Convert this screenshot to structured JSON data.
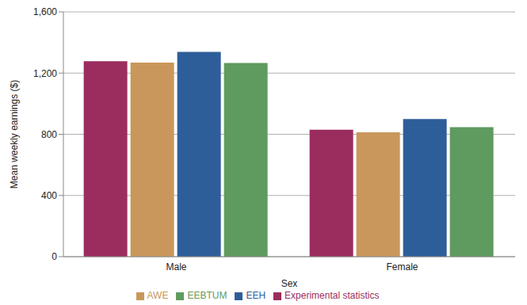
{
  "chart_data": {
    "type": "bar",
    "x_label": "Sex",
    "y_label": "Mean weekly earnings ($)",
    "categories": [
      "Male",
      "Female"
    ],
    "series": [
      {
        "name": "Experimental statistics",
        "color": "#9b2d5e",
        "values": [
          1278,
          830
        ]
      },
      {
        "name": "AWE",
        "color": "#c9975b",
        "values": [
          1268,
          813
        ]
      },
      {
        "name": "EEH",
        "color": "#2e5e99",
        "values": [
          1338,
          900
        ]
      },
      {
        "name": "EEBTUM",
        "color": "#5f9a5f",
        "values": [
          1266,
          846
        ]
      }
    ],
    "ylim": [
      0,
      1600
    ],
    "yticks": [
      0,
      400,
      800,
      {
        "value": 1200,
        "label": "1,200"
      },
      {
        "value": 1600,
        "label": "1,600"
      }
    ],
    "grid": true,
    "legend": "bottom"
  }
}
